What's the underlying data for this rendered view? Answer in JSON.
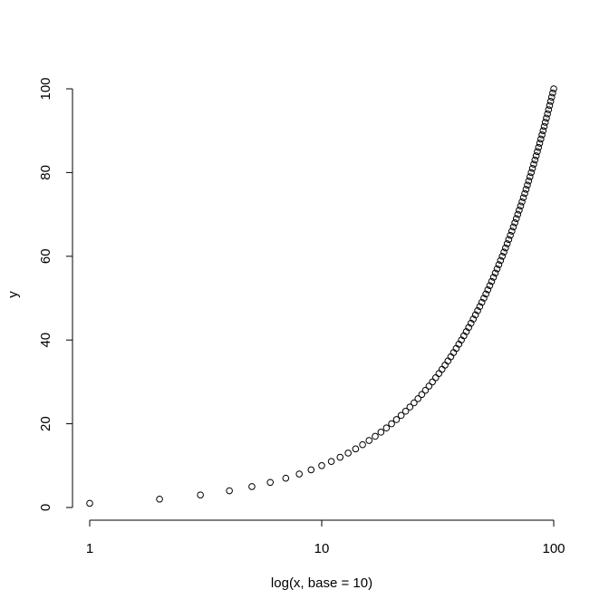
{
  "chart_data": {
    "type": "scatter",
    "title": "",
    "xlabel": "log(x, base = 10)",
    "ylabel": "y",
    "x_scale": "log10",
    "xlim": [
      1,
      100
    ],
    "ylim": [
      0,
      100
    ],
    "x_ticks": [
      1,
      10,
      100
    ],
    "x_tick_labels": [
      "1",
      "10",
      "100"
    ],
    "y_ticks": [
      0,
      20,
      40,
      60,
      80,
      100
    ],
    "y_tick_labels": [
      "0",
      "20",
      "40",
      "60",
      "80",
      "100"
    ],
    "grid": false,
    "marker": "open-circle",
    "series": [
      {
        "x": [
          1,
          2,
          3,
          4,
          5,
          6,
          7,
          8,
          9,
          10,
          11,
          12,
          13,
          14,
          15,
          16,
          17,
          18,
          19,
          20,
          21,
          22,
          23,
          24,
          25,
          26,
          27,
          28,
          29,
          30,
          31,
          32,
          33,
          34,
          35,
          36,
          37,
          38,
          39,
          40,
          41,
          42,
          43,
          44,
          45,
          46,
          47,
          48,
          49,
          50,
          51,
          52,
          53,
          54,
          55,
          56,
          57,
          58,
          59,
          60,
          61,
          62,
          63,
          64,
          65,
          66,
          67,
          68,
          69,
          70,
          71,
          72,
          73,
          74,
          75,
          76,
          77,
          78,
          79,
          80,
          81,
          82,
          83,
          84,
          85,
          86,
          87,
          88,
          89,
          90,
          91,
          92,
          93,
          94,
          95,
          96,
          97,
          98,
          99,
          100
        ],
        "y": [
          1,
          2,
          3,
          4,
          5,
          6,
          7,
          8,
          9,
          10,
          11,
          12,
          13,
          14,
          15,
          16,
          17,
          18,
          19,
          20,
          21,
          22,
          23,
          24,
          25,
          26,
          27,
          28,
          29,
          30,
          31,
          32,
          33,
          34,
          35,
          36,
          37,
          38,
          39,
          40,
          41,
          42,
          43,
          44,
          45,
          46,
          47,
          48,
          49,
          50,
          51,
          52,
          53,
          54,
          55,
          56,
          57,
          58,
          59,
          60,
          61,
          62,
          63,
          64,
          65,
          66,
          67,
          68,
          69,
          70,
          71,
          72,
          73,
          74,
          75,
          76,
          77,
          78,
          79,
          80,
          81,
          82,
          83,
          84,
          85,
          86,
          87,
          88,
          89,
          90,
          91,
          92,
          93,
          94,
          95,
          96,
          97,
          98,
          99,
          100
        ]
      }
    ]
  }
}
